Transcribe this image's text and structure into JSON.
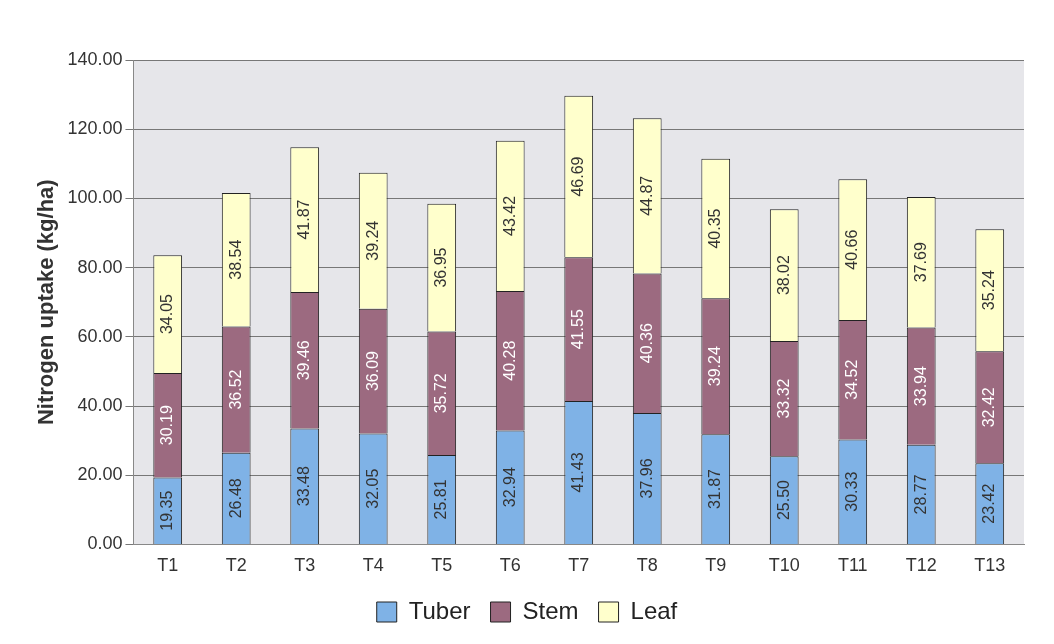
{
  "chart_data": {
    "type": "bar",
    "stacked": true,
    "ylabel": "Nitrogen uptake (kg/ha)",
    "categories": [
      "T1",
      "T2",
      "T3",
      "T4",
      "T5",
      "T6",
      "T7",
      "T8",
      "T9",
      "T10",
      "T11",
      "T12",
      "T13"
    ],
    "series": [
      {
        "name": "Tuber",
        "color": "#7fb2e6",
        "values": [
          19.35,
          26.48,
          33.48,
          32.05,
          25.81,
          32.94,
          41.43,
          37.96,
          31.87,
          25.5,
          30.33,
          28.77,
          23.42
        ],
        "value_labels": [
          "19.35",
          "26.48",
          "33.48",
          "32.05",
          "25.81",
          "32.94",
          "41.43",
          "37.96",
          "31.87",
          "25.50",
          "30.33",
          "28.77",
          "23.42"
        ]
      },
      {
        "name": "Stem",
        "color": "#9c6a80",
        "values": [
          30.19,
          36.52,
          39.46,
          36.09,
          35.72,
          40.28,
          41.55,
          40.36,
          39.24,
          33.32,
          34.52,
          33.94,
          32.42
        ],
        "value_labels": [
          "30.19",
          "36.52",
          "39.46",
          "36.09",
          "35.72",
          "40.28",
          "41.55",
          "40.36",
          "39.24",
          "33.32",
          "34.52",
          "33.94",
          "32.42"
        ]
      },
      {
        "name": "Leaf",
        "color": "#ffffcc",
        "values": [
          34.05,
          38.54,
          41.87,
          39.24,
          36.95,
          43.42,
          46.69,
          44.87,
          40.35,
          38.02,
          40.66,
          37.69,
          35.24
        ],
        "value_labels": [
          "34.05",
          "38.54",
          "41.87",
          "39.24",
          "36.95",
          "43.42",
          "46.69",
          "44.87",
          "40.35",
          "38.02",
          "40.66",
          "37.69",
          "35.24"
        ]
      }
    ],
    "ylim": [
      0,
      140
    ],
    "yticks": [
      {
        "value": 0,
        "label": "0.00"
      },
      {
        "value": 20,
        "label": "20.00"
      },
      {
        "value": 40,
        "label": "40.00"
      },
      {
        "value": 60,
        "label": "60.00"
      },
      {
        "value": 80,
        "label": "80.00"
      },
      {
        "value": 100,
        "label": "100.00"
      },
      {
        "value": 120,
        "label": "120.00"
      },
      {
        "value": 140,
        "label": "140.00"
      }
    ],
    "grid": "y",
    "legend": "bottom"
  }
}
